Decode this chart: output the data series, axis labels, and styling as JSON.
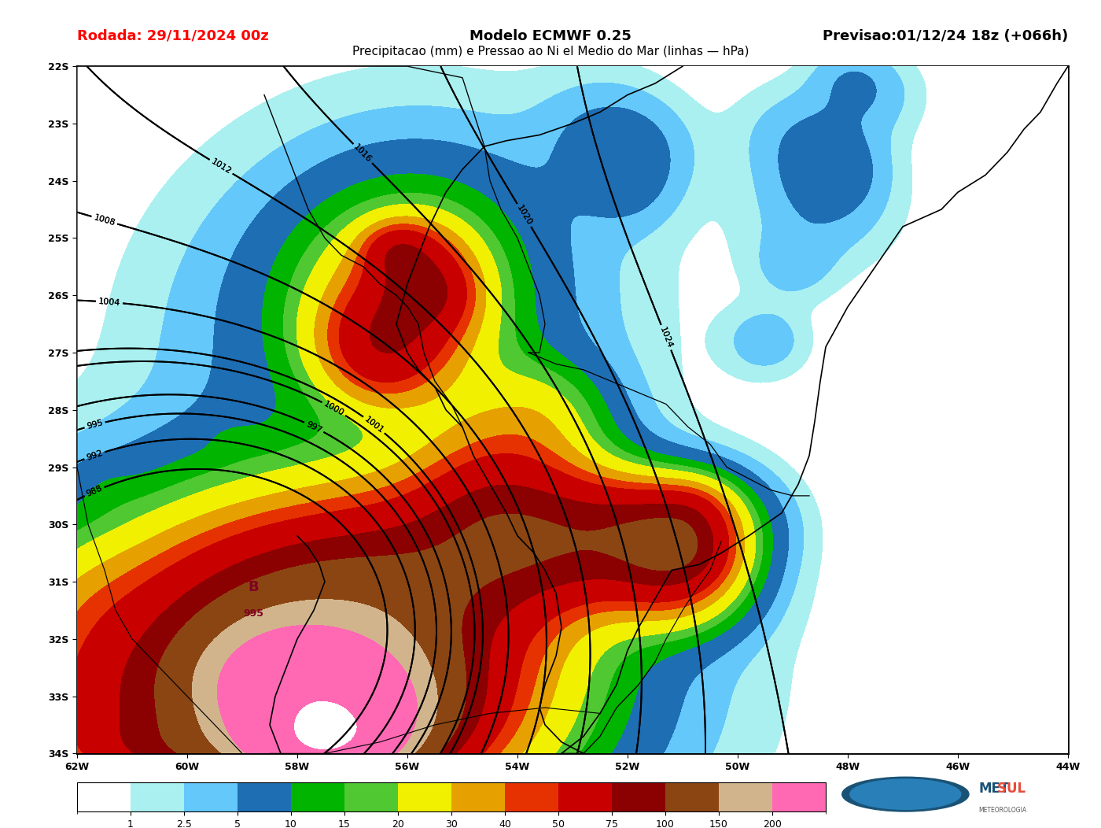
{
  "title_left": "Rodada: 29/11/2024 00z",
  "title_center": "Modelo ECMWF 0.25",
  "title_right": "Previsao:01/12/24 18z (+066h)",
  "subtitle": "Precipitacao (mm) e Pressao ao Ni el Medio do Mar (linhas — hPa)",
  "lon_min": -62,
  "lon_max": -44,
  "lat_min": -34,
  "lat_max": -22,
  "xlabel_ticks": [
    "62W",
    "60W",
    "58W",
    "56W",
    "54W",
    "52W",
    "50W",
    "48W",
    "46W",
    "44W"
  ],
  "xlabel_vals": [
    -62,
    -60,
    -58,
    -56,
    -54,
    -52,
    -50,
    -48,
    -46,
    -44
  ],
  "ylabel_ticks": [
    "22S",
    "23S",
    "24S",
    "25S",
    "26S",
    "27S",
    "28S",
    "29S",
    "30S",
    "31S",
    "32S",
    "33S",
    "34S"
  ],
  "ylabel_vals": [
    -22,
    -23,
    -24,
    -25,
    -26,
    -27,
    -28,
    -29,
    -30,
    -31,
    -32,
    -33,
    -34
  ],
  "precip_levels": [
    0,
    1,
    2.5,
    5,
    10,
    15,
    20,
    30,
    40,
    50,
    75,
    100,
    150,
    200,
    400
  ],
  "precip_colors": [
    "#ffffff",
    "#aaf0f0",
    "#64c8fa",
    "#1e6eb4",
    "#00b400",
    "#50c832",
    "#f0f000",
    "#e6a000",
    "#e63200",
    "#c80000",
    "#8b0000",
    "#8b4513",
    "#d2b48c",
    "#ff69b4"
  ],
  "colorbar_levels": [
    1,
    2.5,
    5,
    10,
    15,
    20,
    30,
    40,
    50,
    75,
    100,
    150,
    200
  ],
  "colorbar_colors": [
    "#aaf0f0",
    "#64c8fa",
    "#1e6eb4",
    "#00b400",
    "#50c832",
    "#f0f000",
    "#e6a000",
    "#e63200",
    "#c80000",
    "#8b0000",
    "#8b4513",
    "#d2b48c",
    "#ff69b4"
  ],
  "background_color": "#ffffff",
  "fig_width": 14.0,
  "fig_height": 10.52,
  "dpi": 100,
  "title_fontsize": 13,
  "subtitle_fontsize": 11,
  "tick_fontsize": 9,
  "colorbar_label_fontsize": 9,
  "contour_color": "#000000",
  "contour_linewidth": 1.4,
  "border_linewidth": 1.2
}
